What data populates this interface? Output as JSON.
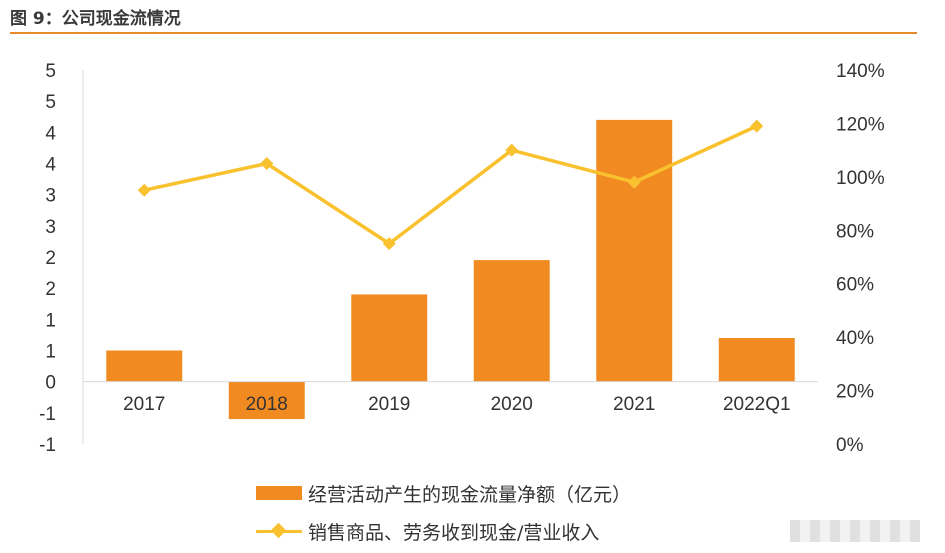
{
  "figure": {
    "title": "图 9：公司现金流情况"
  },
  "colors": {
    "accent_rule": "#e8892b",
    "bar": "#f28a22",
    "line": "#f9c12e"
  },
  "chart_data": {
    "type": "bar",
    "categories": [
      "2017",
      "2018",
      "2019",
      "2020",
      "2021",
      "2022Q1"
    ],
    "series": [
      {
        "name": "经营活动产生的现金流量净额（亿元）",
        "type": "bar",
        "axis": "left",
        "values": [
          0.5,
          -0.6,
          1.4,
          1.95,
          4.2,
          0.7
        ]
      },
      {
        "name": "销售商品、劳务收到现金/营业收入",
        "type": "line",
        "axis": "right",
        "values": [
          95,
          105,
          75,
          110,
          98,
          119
        ]
      }
    ],
    "left_axis": {
      "ylim": [
        -1,
        5
      ],
      "ticks": [
        -1,
        -0.5,
        0,
        0.5,
        1,
        1.5,
        2,
        2.5,
        3,
        3.5,
        4,
        4.5,
        5
      ],
      "tick_labels": [
        "-1",
        "-1",
        "0",
        "1",
        "1",
        "2",
        "2",
        "3",
        "3",
        "4",
        "4",
        "5",
        "5"
      ]
    },
    "right_axis": {
      "ylim": [
        0,
        140
      ],
      "ticks": [
        0,
        20,
        40,
        60,
        80,
        100,
        120,
        140
      ],
      "tick_labels": [
        "0%",
        "20%",
        "40%",
        "60%",
        "80%",
        "100%",
        "120%",
        "140%"
      ]
    },
    "grid": false,
    "legend_position": "bottom"
  },
  "legend": {
    "bar_label": "经营活动产生的现金流量净额（亿元）",
    "line_label": "销售商品、劳务收到现金/营业收入"
  }
}
